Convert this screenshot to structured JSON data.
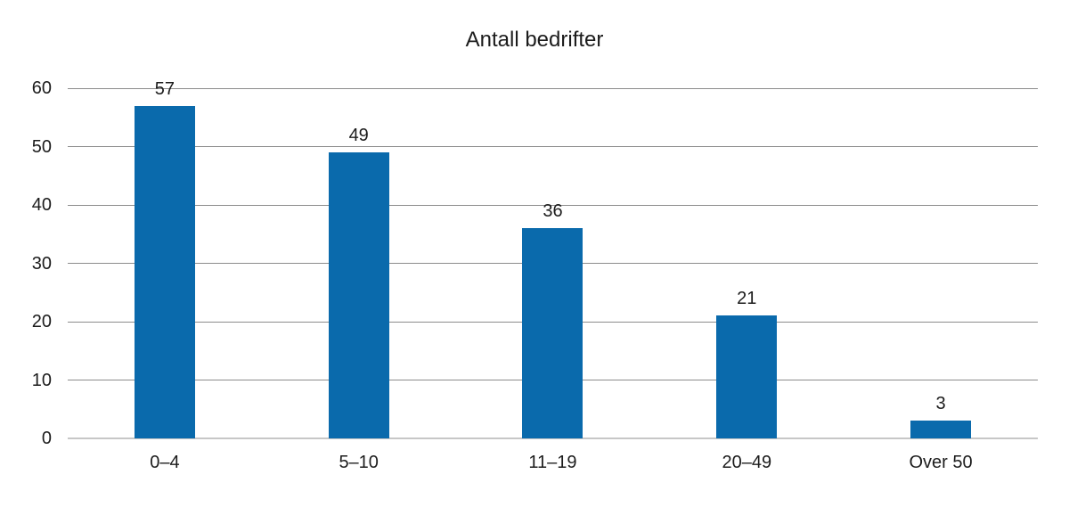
{
  "chart_data": {
    "type": "bar",
    "title": "Antall bedrifter",
    "categories": [
      "0–4",
      "5–10",
      "11–19",
      "20–49",
      "Over 50"
    ],
    "values": [
      57,
      49,
      36,
      21,
      3
    ],
    "xlabel": "",
    "ylabel": "",
    "ylim": [
      0,
      60
    ],
    "yticks": [
      0,
      10,
      20,
      30,
      40,
      50,
      60
    ],
    "grid": true,
    "legend": false,
    "show_value_labels": true
  },
  "colors": {
    "bar": "#0a6aac",
    "gridline": "#8c8c8c",
    "baseline": "#c7c7c7",
    "text": "#1c1c1c",
    "background": "#ffffff"
  }
}
